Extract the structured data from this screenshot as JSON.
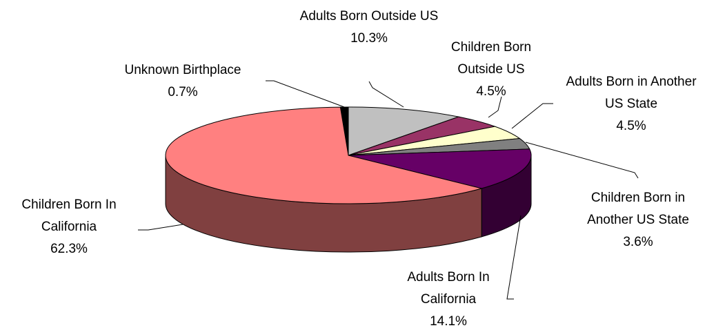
{
  "chart_data": {
    "type": "pie3d",
    "categories": [
      "Unknown Birthplace",
      "Adults Born Outside US",
      "Children Born Outside US",
      "Adults Born in Another US State",
      "Children Born in Another US State",
      "Adults Born In California",
      "Children Born In California"
    ],
    "values": [
      0.7,
      10.3,
      4.5,
      4.5,
      3.6,
      14.1,
      62.3
    ],
    "value_labels": [
      "0.7%",
      "10.3%",
      "4.5%",
      "4.5%",
      "3.6%",
      "14.1%",
      "62.3%"
    ],
    "colors": [
      "#000000",
      "#c0c0c0",
      "#993366",
      "#ffffcc",
      "#808080",
      "#660066",
      "#ff8080"
    ]
  }
}
